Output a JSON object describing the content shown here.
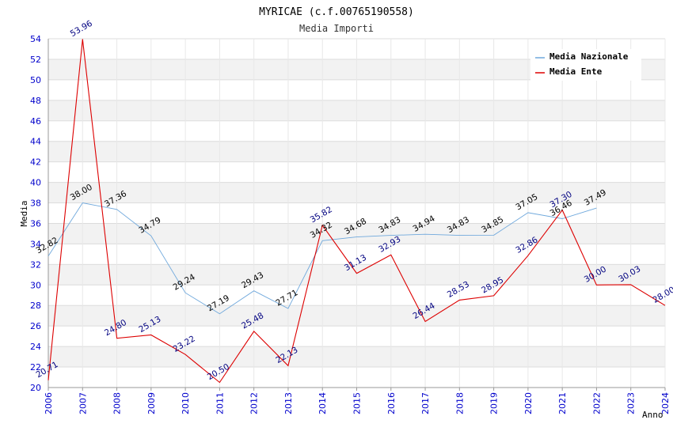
{
  "chart_data": {
    "type": "line",
    "title": "MYRICAE (c.f.00765190558)",
    "subtitle": "Media Importi",
    "xlabel": "Anno",
    "ylabel": "Media",
    "ylim": [
      20,
      54
    ],
    "yticks": [
      20,
      22,
      24,
      26,
      28,
      30,
      32,
      34,
      36,
      38,
      40,
      42,
      44,
      46,
      48,
      50,
      52,
      54
    ],
    "categories": [
      "2006",
      "2007",
      "2008",
      "2009",
      "2010",
      "2011",
      "2012",
      "2013",
      "2014",
      "2015",
      "2016",
      "2017",
      "2018",
      "2019",
      "2020",
      "2021",
      "2022",
      "2023",
      "2024"
    ],
    "legend_position": "top-right",
    "series": [
      {
        "name": "Media Nazionale",
        "color": "#6fa8dc",
        "label_color": "#000000",
        "values": [
          32.82,
          38.0,
          37.36,
          34.79,
          29.24,
          27.19,
          29.43,
          27.71,
          34.32,
          34.68,
          34.83,
          34.94,
          34.83,
          34.85,
          37.05,
          36.46,
          37.49,
          null,
          null
        ],
        "labels": [
          "32.82",
          "38.00",
          "37.36",
          "34.79",
          "29.24",
          "27.19",
          "29.43",
          "27.71",
          "34.32",
          "34.68",
          "34.83",
          "34.94",
          "34.83",
          "34.85",
          "37.05",
          "36.46",
          "37.49",
          null,
          null
        ]
      },
      {
        "name": "Media Ente",
        "color": "#dd0000",
        "label_color": "#000080",
        "values": [
          20.71,
          53.96,
          24.8,
          25.13,
          23.22,
          20.5,
          25.48,
          22.13,
          35.82,
          31.13,
          32.93,
          26.44,
          28.53,
          28.95,
          32.86,
          37.3,
          30.0,
          30.03,
          28.0
        ],
        "labels": [
          "20.71",
          "53.96",
          "24.80",
          "25.13",
          "23.22",
          "20.50",
          "25.48",
          "22.13",
          "35.82",
          "31.13",
          "32.93",
          "26.44",
          "28.53",
          "28.95",
          "32.86",
          "37.30",
          "30.00",
          "30.03",
          "28.00"
        ]
      }
    ]
  }
}
